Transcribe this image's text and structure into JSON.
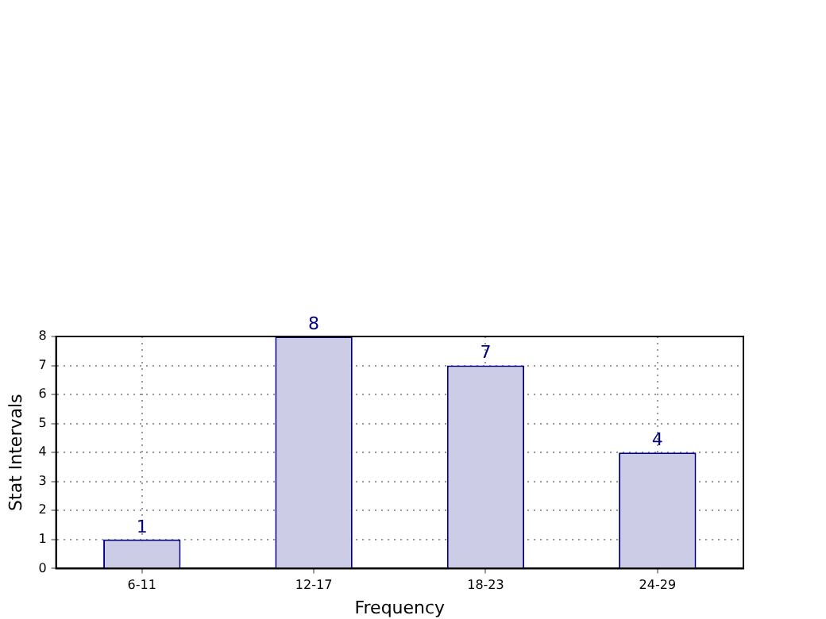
{
  "chart_data": {
    "type": "bar",
    "xlabel": "Frequency",
    "ylabel": "Stat Intervals",
    "categories": [
      "6-11",
      "12-17",
      "18-23",
      "24-29"
    ],
    "values": [
      1,
      8,
      7,
      4
    ],
    "color": "#cccce6",
    "ylim": [
      0,
      8
    ],
    "yticks": [
      0,
      1,
      2,
      3,
      4,
      5,
      6,
      7,
      8
    ],
    "grid": true,
    "legend": false,
    "data_labels": true
  }
}
